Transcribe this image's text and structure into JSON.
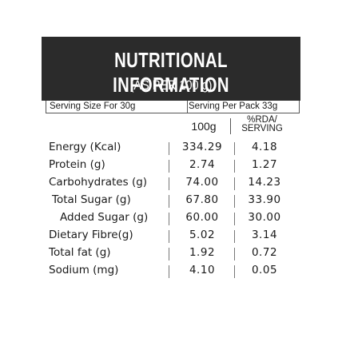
{
  "label": {
    "title": "NUTRITIONAL INFORMATION",
    "subtitle": "(AS PER 100 g)",
    "serving_size": "Serving Size For 30g",
    "servings_per_pack": "Serving Per Pack 33g",
    "columns": {
      "per_100g": "100g",
      "rda_line1": "%RDA/",
      "rda_line2": "SERVING"
    },
    "rows": [
      {
        "name": "Energy (Kcal)",
        "per_100g": "334.29",
        "rda": "4.18"
      },
      {
        "name": "Protein (g)",
        "per_100g": "2.74",
        "rda": "1.27"
      },
      {
        "name": "Carbohydrates (g)",
        "per_100g": "74.00",
        "rda": "14.23"
      },
      {
        "name": "Total Sugar (g)",
        "per_100g": "67.80",
        "rda": "33.90"
      },
      {
        "name": "Added Sugar (g)",
        "per_100g": "60.00",
        "rda": "30.00"
      },
      {
        "name": "Dietary Fibre(g)",
        "per_100g": "5.02",
        "rda": "3.14"
      },
      {
        "name": "Total fat (g)",
        "per_100g": "1.92",
        "rda": "0.72"
      },
      {
        "name": "Sodium (mg)",
        "per_100g": "4.10",
        "rda": "0.05"
      }
    ]
  },
  "colors": {
    "header_background": "#2b2b2b",
    "header_text": "#ffffff",
    "body_text": "#1a1a1a"
  }
}
